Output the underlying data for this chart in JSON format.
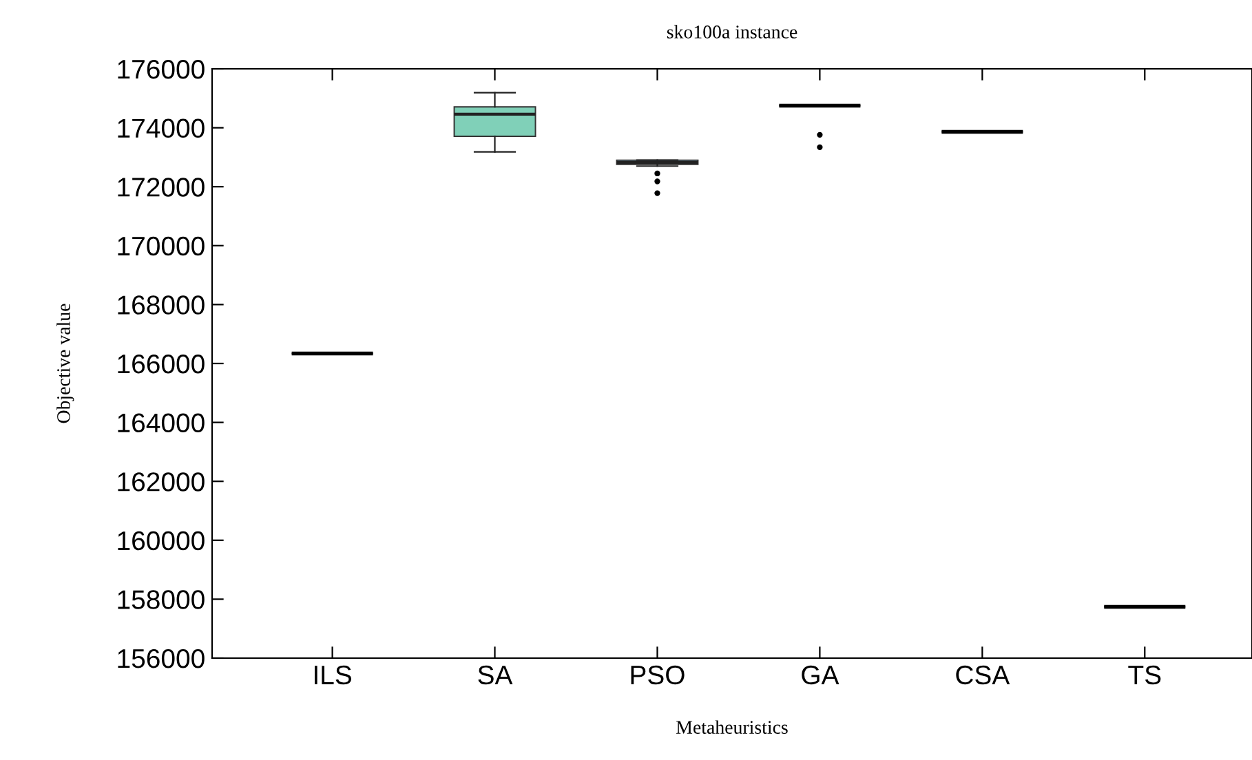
{
  "chart_data": {
    "type": "box",
    "title": "sko100a instance",
    "xlabel": "Metaheuristics",
    "ylabel": "Objective value",
    "categories": [
      "ILS",
      "SA",
      "PSO",
      "GA",
      "CSA",
      "TS"
    ],
    "boxes": [
      {
        "low": 166340,
        "q1": 166340,
        "median": 166340,
        "q3": 166340,
        "high": 166340
      },
      {
        "low": 173180,
        "q1": 173710,
        "median": 174460,
        "q3": 174710,
        "high": 175190
      },
      {
        "low": 172700,
        "q1": 172760,
        "median": 172820,
        "q3": 172900,
        "high": 172900,
        "outliers": [
          172450,
          172180,
          171780
        ]
      },
      {
        "low": 174750,
        "q1": 174750,
        "median": 174750,
        "q3": 174750,
        "high": 174750,
        "outliers": [
          173760,
          173340
        ]
      },
      {
        "low": 173860,
        "q1": 173860,
        "median": 173860,
        "q3": 173860,
        "high": 173860
      },
      {
        "low": 157740,
        "q1": 157740,
        "median": 157740,
        "q3": 157740,
        "high": 157740
      }
    ],
    "colors": [
      "#000000",
      "#80d0b8",
      "#8ec8e8",
      "#000000",
      "#000000",
      "#000000"
    ],
    "ylim": [
      156000,
      176000
    ],
    "yticks": [
      156000,
      158000,
      160000,
      162000,
      164000,
      166000,
      168000,
      170000,
      172000,
      174000,
      176000
    ],
    "grid": false,
    "legend": false
  }
}
